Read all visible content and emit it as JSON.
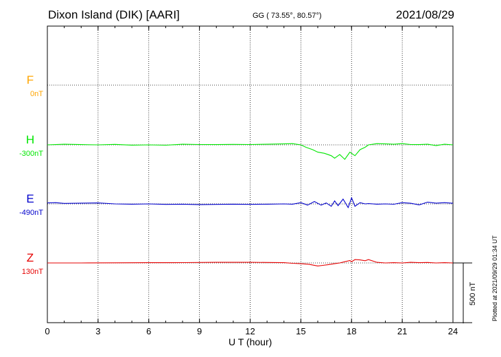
{
  "header": {
    "title": "Dixon Island (DIK)  [AARI]",
    "coords": "GG ( 73.55°,  80.57°)",
    "date": "2021/08/29"
  },
  "footer": {
    "plotted": "Plotted at 2021/09/29 01:34 UT"
  },
  "colors": {
    "F": "#ffa500",
    "H": "#00e600",
    "E": "#0000cc",
    "Z": "#e60000"
  },
  "chart_data": {
    "type": "line",
    "xlabel": "U T (hour)",
    "xlim": [
      0,
      24
    ],
    "xticks": [
      "0",
      "3",
      "6",
      "9",
      "12",
      "15",
      "18",
      "21",
      "24"
    ],
    "scale_bar": "500 nT",
    "panels": [
      {
        "name": "F",
        "offset": "0nT"
      },
      {
        "name": "H",
        "offset": "-300nT"
      },
      {
        "name": "E",
        "offset": "-490nT"
      },
      {
        "name": "Z",
        "offset": "130nT"
      }
    ],
    "series": [
      {
        "name": "H",
        "x": [
          0,
          1,
          2,
          3,
          4,
          5,
          6,
          7,
          8,
          9,
          10,
          11,
          12,
          13,
          14,
          14.5,
          15,
          15.3,
          15.7,
          16,
          16.4,
          16.8,
          17,
          17.3,
          17.6,
          17.9,
          18.2,
          18.5,
          18.8,
          19,
          19.5,
          20,
          20.5,
          21,
          21.5,
          22,
          22.5,
          23,
          23.5,
          24
        ],
        "y": [
          0,
          5,
          2,
          0,
          4,
          -2,
          0,
          -3,
          5,
          3,
          2,
          4,
          3,
          5,
          8,
          10,
          0,
          -20,
          -40,
          -60,
          -70,
          -90,
          -110,
          -80,
          -120,
          -60,
          -90,
          -40,
          -20,
          0,
          10,
          8,
          5,
          10,
          3,
          2,
          5,
          -6,
          5,
          0
        ]
      },
      {
        "name": "E",
        "x": [
          0,
          0.5,
          1,
          2,
          3,
          4,
          5,
          6,
          7,
          8,
          9,
          10,
          11,
          12,
          13,
          14,
          14.5,
          15,
          15.4,
          15.8,
          16.2,
          16.5,
          16.8,
          17,
          17.2,
          17.5,
          17.8,
          18,
          18.2,
          18.5,
          18.8,
          19,
          19.5,
          20,
          20.5,
          21,
          21.5,
          22,
          22.5,
          23,
          23.5,
          24
        ],
        "y": [
          8,
          10,
          4,
          6,
          8,
          0,
          -2,
          0,
          -4,
          -2,
          -6,
          -4,
          -2,
          -4,
          -2,
          0,
          -2,
          10,
          -10,
          20,
          -10,
          8,
          -20,
          25,
          -15,
          40,
          -30,
          50,
          -20,
          10,
          0,
          3,
          -2,
          0,
          -3,
          10,
          5,
          -8,
          15,
          6,
          10,
          5
        ]
      },
      {
        "name": "Z",
        "x": [
          0,
          2,
          4,
          6,
          8,
          10,
          12,
          13,
          14,
          14.5,
          15,
          15.5,
          16,
          16.3,
          16.6,
          17,
          17.3,
          17.6,
          17.9,
          18,
          18.2,
          18.5,
          18.8,
          19,
          19.5,
          20,
          20.5,
          21,
          21.5,
          22,
          22.5,
          23,
          23.5,
          24
        ],
        "y": [
          0,
          0,
          1,
          2,
          3,
          5,
          5,
          4,
          2,
          -3,
          -6,
          -12,
          -25,
          -20,
          -15,
          -6,
          0,
          10,
          20,
          10,
          28,
          25,
          18,
          28,
          5,
          0,
          2,
          0,
          5,
          2,
          4,
          0,
          2,
          0
        ]
      }
    ]
  }
}
